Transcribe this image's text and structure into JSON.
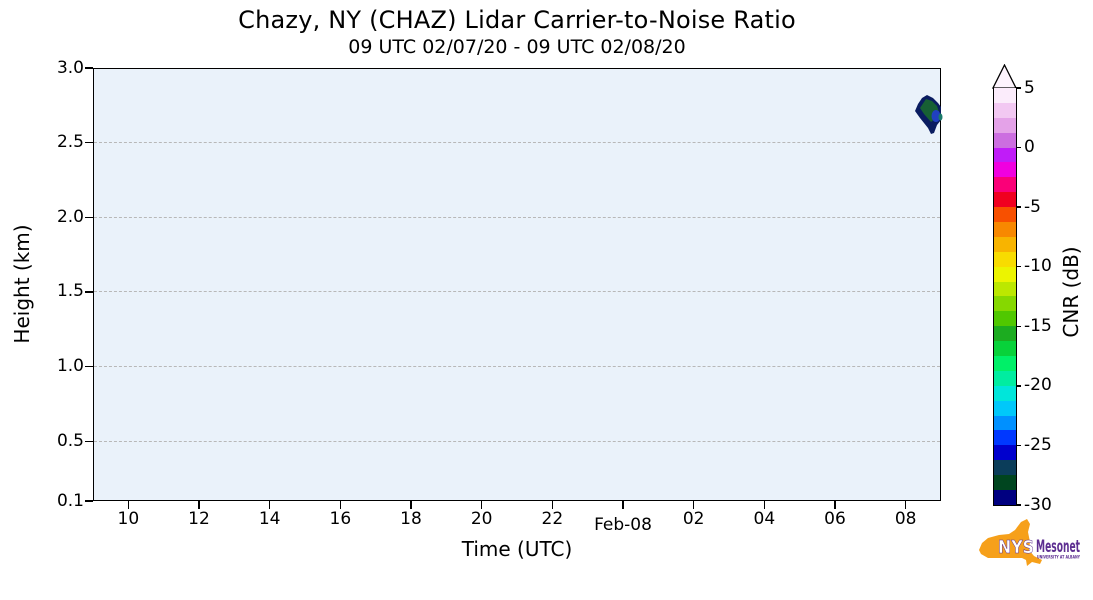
{
  "title": "Chazy, NY (CHAZ) Lidar Carrier-to-Noise Ratio",
  "subtitle": "09 UTC 02/07/20 - 09 UTC 02/08/20",
  "axes": {
    "x_label": "Time (UTC)",
    "y_label": "Height (km)"
  },
  "colorbar_label": "CNR (dB)",
  "logo": {
    "org": "NYS",
    "name": "Mesonet",
    "tagline": "UNIVERSITY AT ALBANY",
    "state_color": "#F6A01A",
    "text_color": "#5D2E91"
  },
  "chart_data": {
    "type": "heatmap",
    "title": "Chazy, NY (CHAZ) Lidar Carrier-to-Noise Ratio",
    "subtitle": "09 UTC 02/07/20 - 09 UTC 02/08/20",
    "xlabel": "Time (UTC)",
    "ylabel": "Height (km)",
    "x_range": [
      "02/07/20 09:00 UTC",
      "02/08/20 09:00 UTC"
    ],
    "x_ticks": [
      {
        "label": "10",
        "hour_offset": 1
      },
      {
        "label": "12",
        "hour_offset": 3
      },
      {
        "label": "14",
        "hour_offset": 5
      },
      {
        "label": "16",
        "hour_offset": 7
      },
      {
        "label": "18",
        "hour_offset": 9
      },
      {
        "label": "20",
        "hour_offset": 11
      },
      {
        "label": "22",
        "hour_offset": 13
      },
      {
        "label": "Feb-08",
        "hour_offset": 15,
        "date_label": true
      },
      {
        "label": "02",
        "hour_offset": 17
      },
      {
        "label": "04",
        "hour_offset": 19
      },
      {
        "label": "06",
        "hour_offset": 21
      },
      {
        "label": "08",
        "hour_offset": 23
      }
    ],
    "ylim": [
      0.1,
      3.0
    ],
    "y_ticks": [
      {
        "label": "3.0",
        "value": 3.0
      },
      {
        "label": "2.5",
        "value": 2.5
      },
      {
        "label": "2.0",
        "value": 2.0
      },
      {
        "label": "1.5",
        "value": 1.5
      },
      {
        "label": "1.0",
        "value": 1.0
      },
      {
        "label": "0.5",
        "value": 0.5
      },
      {
        "label": "0.1",
        "value": 0.1
      }
    ],
    "grid": "horizontal dashed gridlines at y ticks",
    "plot_background": "#eaf2fa",
    "colorbar": {
      "label": "CNR (dB)",
      "range_db": [
        -30,
        5
      ],
      "ticks": [
        {
          "label": "5",
          "value": 5
        },
        {
          "label": "0",
          "value": 0
        },
        {
          "label": "-5",
          "value": -5
        },
        {
          "label": "-10",
          "value": -10
        },
        {
          "label": "-15",
          "value": -15
        },
        {
          "label": "-20",
          "value": -20
        },
        {
          "label": "-25",
          "value": -25
        },
        {
          "label": "-30",
          "value": -30
        }
      ],
      "extend_max_color": "#fdf4fd",
      "segment_colors_bottom_to_top": [
        "#000080",
        "#00451f",
        "#0b3d5a",
        "#0000cd",
        "#0038ff",
        "#0090ff",
        "#00c8fa",
        "#00e6da",
        "#00eda0",
        "#00f068",
        "#08d23a",
        "#1cac20",
        "#50c800",
        "#86d800",
        "#bce800",
        "#ecf400",
        "#f8dc00",
        "#f8b400",
        "#f88800",
        "#f85000",
        "#f00020",
        "#fa0078",
        "#f000e0",
        "#c01cf8",
        "#cc6ee0",
        "#e4a2e8",
        "#f2c8f2",
        "#fbecfb"
      ]
    },
    "data_points": [
      {
        "feature": "single small echo patch; remainder of time-height field is empty (no data)",
        "time_utc": "Feb-08 ~08:15 - 09:00",
        "height_km": [
          2.55,
          2.82
        ],
        "cnr_db_range": [
          -30,
          -24
        ],
        "colors": {
          "outline": "#0a1c60",
          "body": "#176034",
          "core": "#2040c0",
          "edge_sliver": "#1a7a6a"
        }
      }
    ],
    "legend_position": "discrete vertical colorbar at right with upward extend arrow"
  }
}
